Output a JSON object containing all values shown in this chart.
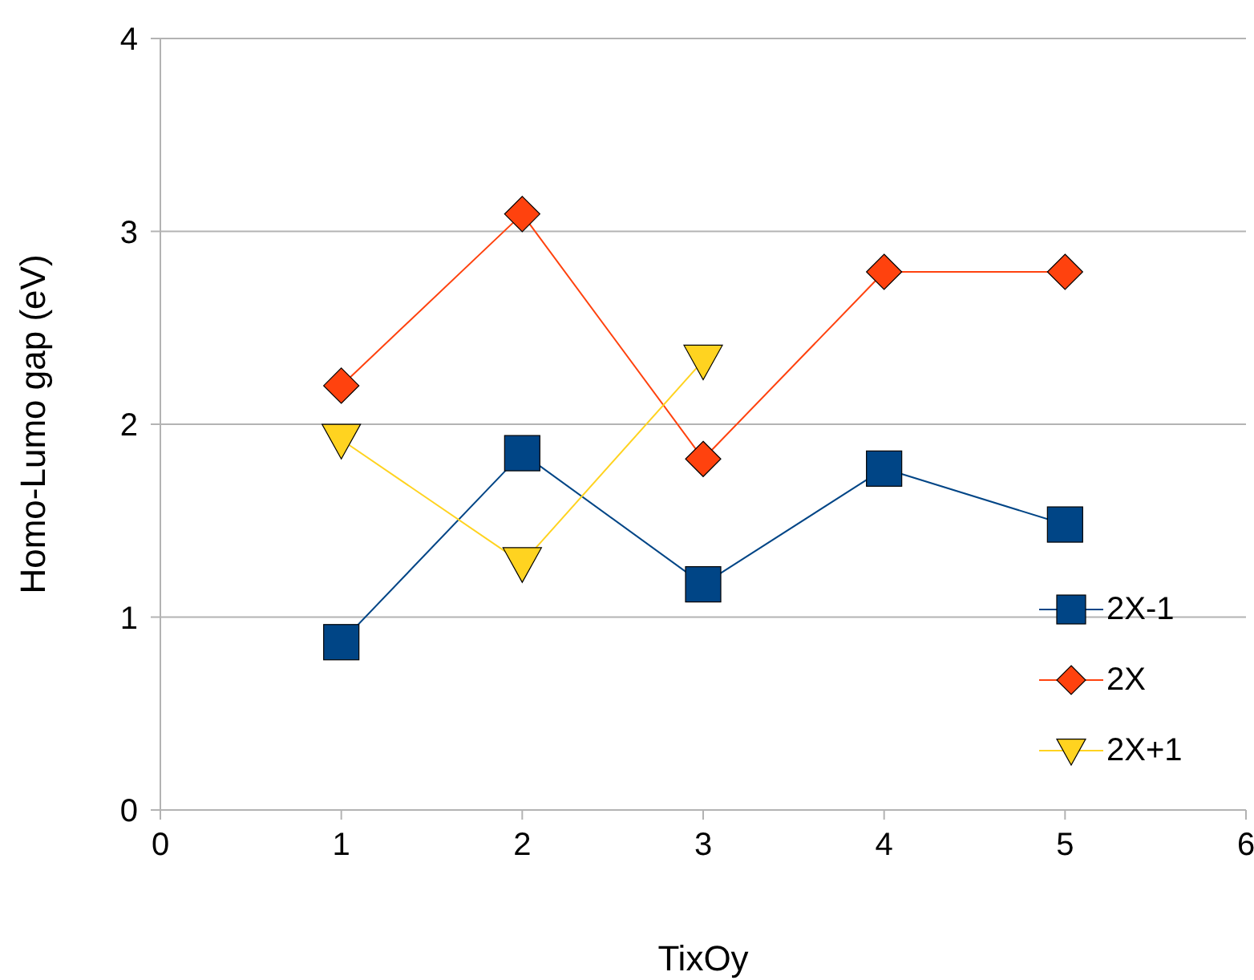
{
  "chart_data": {
    "type": "line",
    "xlabel": "TixOy",
    "ylabel": "Homo-Lumo gap (eV)",
    "x": [
      1,
      2,
      3,
      4,
      5
    ],
    "xlim": [
      0,
      6
    ],
    "xticks": [
      0,
      1,
      2,
      3,
      4,
      5,
      6
    ],
    "ylim": [
      0,
      4
    ],
    "yticks": [
      0,
      1,
      2,
      3,
      4
    ],
    "grid": "y",
    "legend": "right",
    "series": [
      {
        "name": "2X-1",
        "color": "#004586",
        "marker": "square",
        "values": [
          0.87,
          1.85,
          1.17,
          1.77,
          1.48
        ]
      },
      {
        "name": "2X",
        "color": "#ff420e",
        "marker": "diamond",
        "values": [
          2.2,
          3.09,
          1.82,
          2.79,
          2.79
        ]
      },
      {
        "name": "2X+1",
        "color": "#ffd320",
        "marker": "triangle",
        "values": [
          1.92,
          1.28,
          2.33,
          null,
          null
        ]
      }
    ]
  }
}
